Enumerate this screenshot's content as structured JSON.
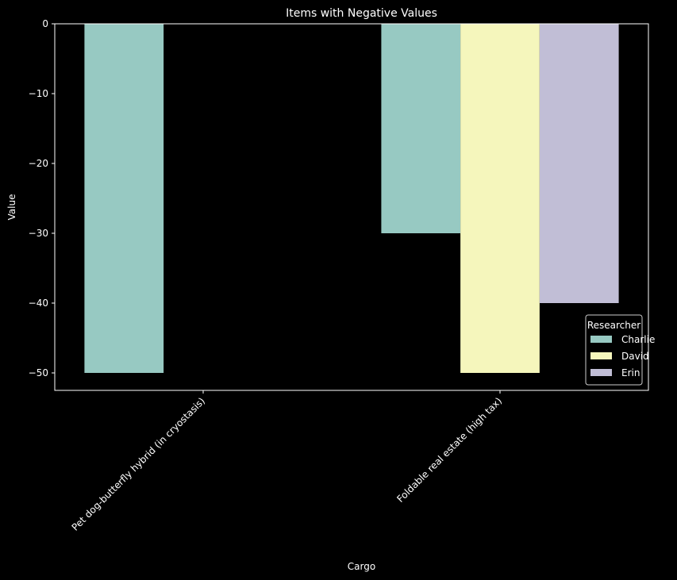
{
  "chart_data": {
    "type": "bar",
    "title": "Items with Negative Values",
    "xlabel": "Cargo",
    "ylabel": "Value",
    "categories": [
      "Pet dog-butterfly hybrid (in cryostasis)",
      "Foldable real estate (high tax)"
    ],
    "series": [
      {
        "name": "Charlie",
        "values": [
          -50,
          -30
        ],
        "color": "#97c9c2"
      },
      {
        "name": "David",
        "values": [
          null,
          -50
        ],
        "color": "#f5f6bc"
      },
      {
        "name": "Erin",
        "values": [
          null,
          -40
        ],
        "color": "#c1bed6"
      }
    ],
    "ylim": [
      -52.5,
      0
    ],
    "yticks": [
      0,
      -10,
      -20,
      -30,
      -40,
      -50
    ],
    "ytick_labels": [
      "0",
      "−10",
      "−20",
      "−30",
      "−40",
      "−50"
    ],
    "legend": {
      "title": "Researcher",
      "position": "lower-right"
    },
    "grid": false,
    "background": "#000000",
    "foreground": "#ffffff"
  }
}
